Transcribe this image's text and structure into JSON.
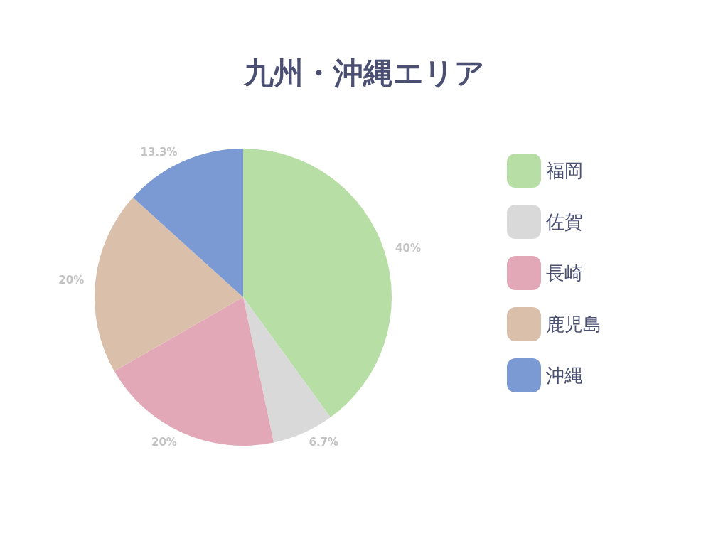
{
  "chart_data": {
    "type": "pie",
    "title": "九州・沖縄エリア",
    "categories": [
      "福岡",
      "佐賀",
      "長崎",
      "鹿児島",
      "沖縄"
    ],
    "values": [
      40,
      6.7,
      20,
      20,
      13.3
    ],
    "colors": [
      "#b7dea5",
      "#d9d9d9",
      "#e2a8b7",
      "#dabfaa",
      "#7b99d3"
    ],
    "value_labels": [
      "40%",
      "6.7%",
      "20%",
      "20%",
      "13.3%"
    ],
    "legend": "right"
  }
}
